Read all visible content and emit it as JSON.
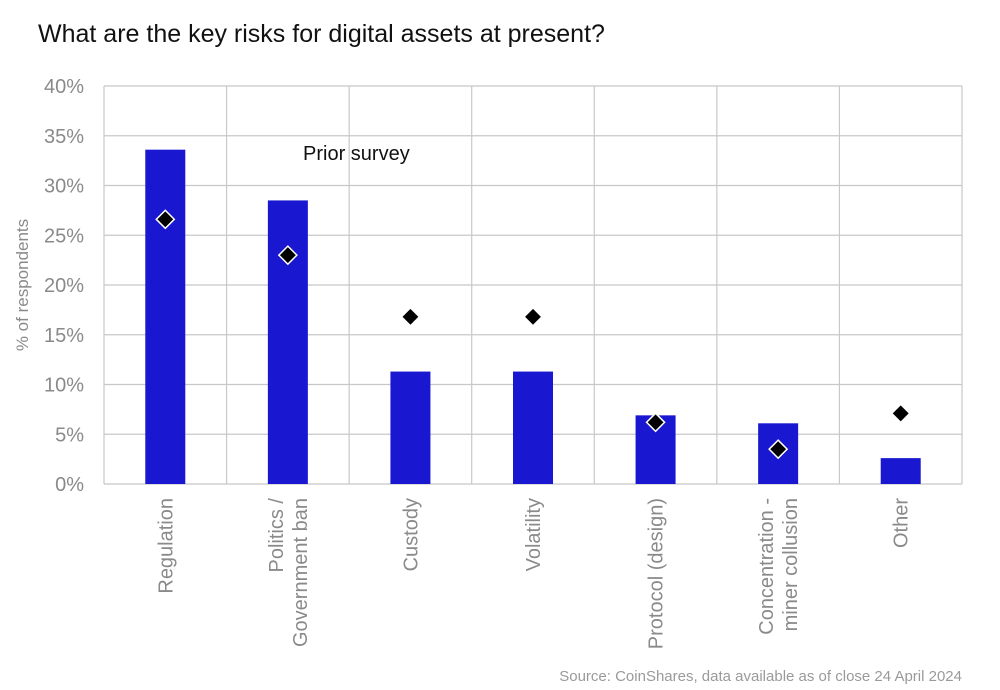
{
  "chart_data": {
    "type": "bar",
    "title": "What are the key risks for digital assets at present?",
    "ylabel": "% of respondents",
    "xlabel": "",
    "ylim": [
      0,
      40
    ],
    "yticks": [
      "0%",
      "5%",
      "10%",
      "15%",
      "20%",
      "25%",
      "30%",
      "35%",
      "40%"
    ],
    "grid": true,
    "categories": [
      [
        "Regulation"
      ],
      [
        "Politics /",
        "Government ban"
      ],
      [
        "Custody"
      ],
      [
        "Volatility"
      ],
      [
        "Protocol (design)"
      ],
      [
        "Concentration -",
        "miner collusion"
      ],
      [
        "Other"
      ]
    ],
    "series": [
      {
        "values": [
          33.6,
          28.5,
          11.3,
          11.3,
          6.9,
          6.1,
          2.6
        ],
        "color": "#1a17d1",
        "marker": "bar"
      },
      {
        "name": "Prior survey",
        "values": [
          26.6,
          23.0,
          16.8,
          16.8,
          6.2,
          3.5,
          7.1
        ],
        "color": "#000000",
        "marker": "diamond"
      }
    ],
    "annotations": [
      {
        "text": "Prior survey"
      }
    ],
    "source": "Source: CoinShares, data available as of close 24 April 2024"
  }
}
